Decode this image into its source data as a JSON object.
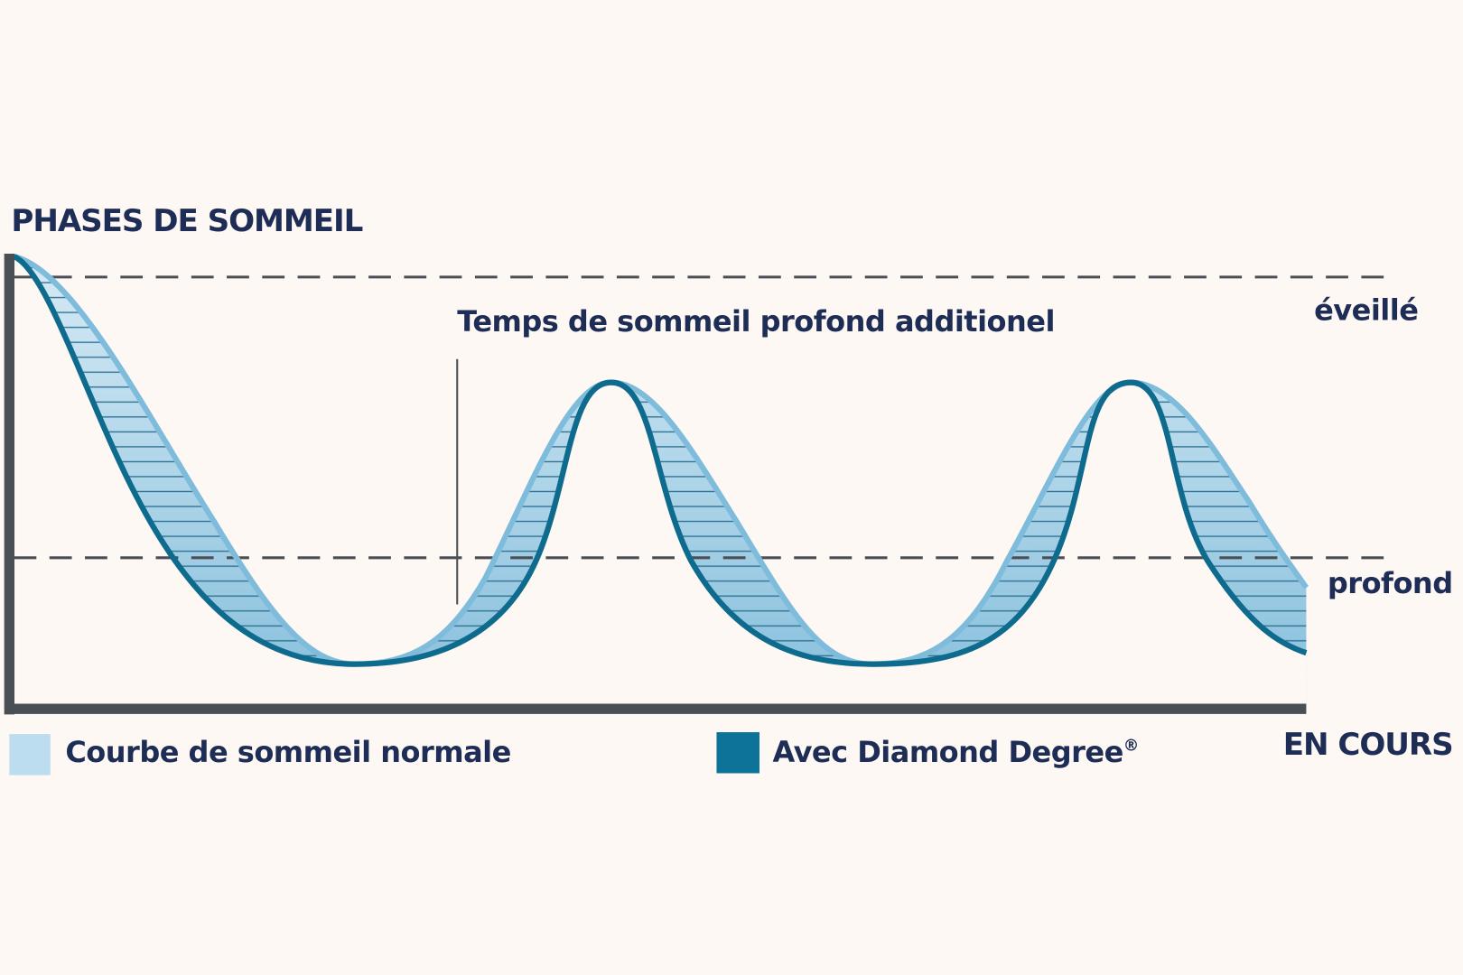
{
  "header": {
    "title": "PHASES DE SOMMEIL"
  },
  "annotation": "Temps de sommeil profond additionel",
  "levels": [
    "éveillé",
    "profond"
  ],
  "x_axis_label": "EN COURS",
  "legend": [
    {
      "label": "Courbe de sommeil normale"
    },
    {
      "label": "Avec Diamond Degree",
      "mark": "®"
    }
  ]
}
